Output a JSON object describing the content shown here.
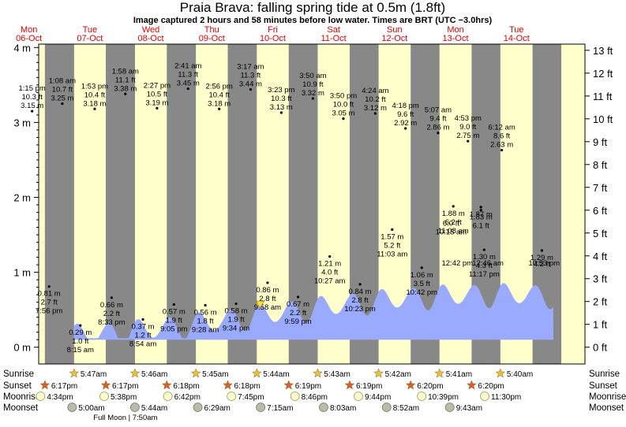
{
  "title": "Praia Brava: falling  spring tide at 0.5m (1.8ft)",
  "subtitle": "Image captured 2 hours and 58 minutes before low water. Times are BRT (UTC −3.0hrs)",
  "colors": {
    "day_background": "#ffffcc",
    "night_band": "#888888",
    "tide_fill": "#99aaff",
    "day_label": "#e00000",
    "sunrise_star": "#e8c040",
    "sunset_star": "#d86030",
    "moonrise_circle": "#ffffcc",
    "moonset_circle": "#bbbbaa"
  },
  "days": [
    {
      "weekday": "Mon",
      "date": "06-Oct"
    },
    {
      "weekday": "Tue",
      "date": "07-Oct"
    },
    {
      "weekday": "Wed",
      "date": "08-Oct"
    },
    {
      "weekday": "Thu",
      "date": "09-Oct"
    },
    {
      "weekday": "Fri",
      "date": "10-Oct"
    },
    {
      "weekday": "Sat",
      "date": "11-Oct"
    },
    {
      "weekday": "Sun",
      "date": "12-Oct"
    },
    {
      "weekday": "Mon",
      "date": "13-Oct"
    },
    {
      "weekday": "Tue",
      "date": "14-Oct"
    }
  ],
  "row_labels": {
    "sunrise": "Sunrise",
    "sunset": "Sunset",
    "moonrise": "Moonrise",
    "moonset": "Moonset"
  },
  "sunrise": [
    "5:47am",
    "5:46am",
    "5:45am",
    "5:44am",
    "5:43am",
    "5:42am",
    "5:41am",
    "5:40am"
  ],
  "sunset": [
    "6:17pm",
    "6:17pm",
    "6:18pm",
    "6:18pm",
    "6:19pm",
    "6:19pm",
    "6:20pm",
    "6:20pm"
  ],
  "moonrise": [
    "4:34pm",
    "5:38pm",
    "6:42pm",
    "7:45pm",
    "8:46pm",
    "9:44pm",
    "10:39pm",
    "11:30pm"
  ],
  "moonset": [
    "5:00am",
    "5:44am",
    "6:29am",
    "7:15am",
    "8:03am",
    "8:52am",
    "9:43am"
  ],
  "full_moon_label": "Full Moon | 7:50am",
  "icons": {
    "sunrise": "sun-star-icon",
    "sunset": "sunset-star-icon",
    "moonrise": "moon-circle-icon",
    "moonset": "moonset-circle-icon",
    "current": "triangle-marker-icon"
  },
  "chart_data": {
    "type": "area",
    "title": "Praia Brava: falling  spring tide at 0.5m (1.8ft)",
    "left_axis": {
      "unit": "m",
      "range": [
        -0.2,
        4.1
      ],
      "ticks": [
        0,
        1,
        2,
        3,
        4
      ],
      "tick_labels": [
        "0 m",
        "1 m",
        "2 m",
        "3 m",
        "4 m"
      ]
    },
    "right_axis": {
      "unit": "ft",
      "ticks": [
        0,
        1,
        2,
        3,
        4,
        5,
        6,
        7,
        8,
        9,
        10,
        11,
        12,
        13
      ],
      "tick_labels": [
        "0 ft",
        "1 ft",
        "2 ft",
        "3 ft",
        "4 ft",
        "5 ft",
        "6 ft",
        "7 ft",
        "8 ft",
        "9 ft",
        "10 ft",
        "11 ft",
        "12 ft",
        "13 ft"
      ]
    },
    "x_range": [
      "06-Oct 00:00",
      "14-Oct 24:00"
    ],
    "current": {
      "time": "10-Oct 07:00",
      "height_m": 0.5,
      "height_ft": 1.8
    },
    "tide_events": [
      {
        "day": 0,
        "time": "1:15 pm",
        "ft": "10.3 ft",
        "m": "3.15 m",
        "type": "high"
      },
      {
        "day": 0,
        "time": "7:56 pm",
        "ft": "2.7 ft",
        "m": "0.81 m",
        "type": "low"
      },
      {
        "day": 1,
        "time": "1:08 am",
        "ft": "10.7 ft",
        "m": "3.25 m",
        "type": "high"
      },
      {
        "day": 1,
        "time": "8:15 am",
        "ft": "1.0 ft",
        "m": "0.29 m",
        "type": "low"
      },
      {
        "day": 1,
        "time": "1:53 pm",
        "ft": "10.4 ft",
        "m": "3.18 m",
        "type": "high"
      },
      {
        "day": 1,
        "time": "8:33 pm",
        "ft": "2.2 ft",
        "m": "0.66 m",
        "type": "low"
      },
      {
        "day": 2,
        "time": "1:58 am",
        "ft": "11.1 ft",
        "m": "3.38 m",
        "type": "high"
      },
      {
        "day": 2,
        "time": "8:54 am",
        "ft": "1.2 ft",
        "m": "0.37 m",
        "type": "low"
      },
      {
        "day": 2,
        "time": "2:27 pm",
        "ft": "10.5 ft",
        "m": "3.19 m",
        "type": "high"
      },
      {
        "day": 2,
        "time": "9:05 pm",
        "ft": "1.9 ft",
        "m": "0.57 m",
        "type": "low"
      },
      {
        "day": 3,
        "time": "2:41 am",
        "ft": "11.3 ft",
        "m": "3.45 m",
        "type": "high"
      },
      {
        "day": 3,
        "time": "9:28 am",
        "ft": "1.8 ft",
        "m": "0.56 m",
        "type": "low"
      },
      {
        "day": 3,
        "time": "2:56 pm",
        "ft": "10.4 ft",
        "m": "3.18 m",
        "type": "high"
      },
      {
        "day": 3,
        "time": "9:34 pm",
        "ft": "1.9 ft",
        "m": "0.58 m",
        "type": "low"
      },
      {
        "day": 4,
        "time": "3:17 am",
        "ft": "11.3 ft",
        "m": "3.44 m",
        "type": "high"
      },
      {
        "day": 4,
        "time": "9:58 am",
        "ft": "2.8 ft",
        "m": "0.86 m",
        "type": "low"
      },
      {
        "day": 4,
        "time": "3:23 pm",
        "ft": "10.3 ft",
        "m": "3.13 m",
        "type": "high"
      },
      {
        "day": 4,
        "time": "9:59 pm",
        "ft": "2.2 ft",
        "m": "0.67 m",
        "type": "low"
      },
      {
        "day": 5,
        "time": "3:50 am",
        "ft": "10.9 ft",
        "m": "3.32 m",
        "type": "high"
      },
      {
        "day": 5,
        "time": "10:27 am",
        "ft": "4.0 ft",
        "m": "1.21 m",
        "type": "low"
      },
      {
        "day": 5,
        "time": "3:50 pm",
        "ft": "10.0 ft",
        "m": "3.05 m",
        "type": "high"
      },
      {
        "day": 5,
        "time": "10:23 pm",
        "ft": "2.8 ft",
        "m": "0.84 m",
        "type": "low"
      },
      {
        "day": 6,
        "time": "4:24 am",
        "ft": "10.2 ft",
        "m": "3.12 m",
        "type": "high"
      },
      {
        "day": 6,
        "time": "11:03 am",
        "ft": "5.2 ft",
        "m": "1.57 m",
        "type": "low"
      },
      {
        "day": 6,
        "time": "4:18 pm",
        "ft": "9.6 ft",
        "m": "2.92 m",
        "type": "high"
      },
      {
        "day": 6,
        "time": "10:42 pm",
        "ft": "3.5 ft",
        "m": "1.06 m",
        "type": "low"
      },
      {
        "day": 7,
        "time": "5:07 am",
        "ft": "9.4 ft",
        "m": "2.86 m",
        "type": "high"
      },
      {
        "day": 7,
        "time": "11:08 am",
        "ft": "6.2 ft",
        "m": "1.88 m",
        "type": "low"
      },
      {
        "day": 7,
        "time": "",
        "ft": "",
        "m": "1.87 m",
        "type": "low"
      },
      {
        "day": 7,
        "time": "",
        "ft": "6.1 ft",
        "m": "1.83 m",
        "type": "low"
      },
      {
        "day": 7,
        "time": "10:15 am",
        "ft": "6.0 ft",
        "m": "",
        "type": "low"
      },
      {
        "day": 7,
        "time": "12:42 pm",
        "ft": "",
        "m": "",
        "type": "low"
      },
      {
        "day": 7,
        "time": "4:53 pm",
        "ft": "9.0 ft",
        "m": "2.75 m",
        "type": "high"
      },
      {
        "day": 7,
        "time": "11:17 pm",
        "ft": "4.3 ft",
        "m": "1.30 m",
        "type": "low"
      },
      {
        "day": 8,
        "time": "6:12 am",
        "ft": "8.6 ft",
        "m": "2.63 m",
        "type": "high"
      },
      {
        "day": 8,
        "time": "",
        "ft": "",
        "m": "1.29 m",
        "type": "low"
      },
      {
        "day": 8,
        "time": "",
        "ft": "4.2 ft",
        "m": "",
        "type": "low"
      },
      {
        "day": 8,
        "time": "10:53 pm",
        "ft": "",
        "m": "",
        "type": "low"
      },
      {
        "day": 8,
        "time": "12:46 am",
        "ft": "",
        "m": "",
        "type": "low"
      }
    ]
  }
}
